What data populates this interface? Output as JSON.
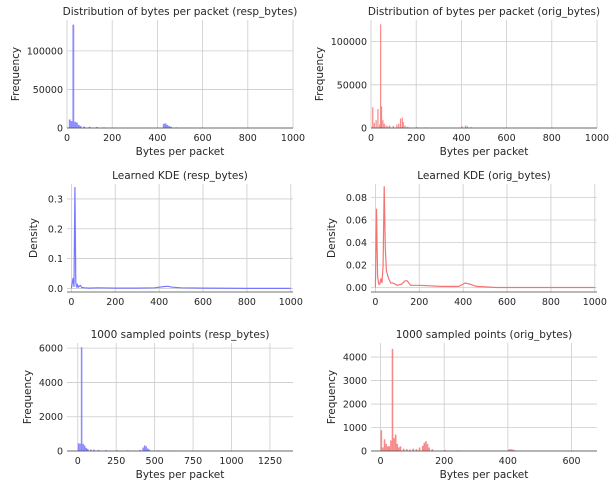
{
  "colors": {
    "resp": "#7777ff",
    "orig": "#f47474",
    "grid": "#cccccc",
    "text": "#262626"
  },
  "chart_data": [
    {
      "type": "bar",
      "title": "Distribution of bytes per packet (resp_bytes)",
      "xlabel": "Bytes per packet",
      "ylabel": "Frequency",
      "color_key": "resp",
      "xlim": [
        0,
        1000
      ],
      "ylim": [
        0,
        140000
      ],
      "xticks": [
        0,
        200,
        400,
        600,
        800,
        1000
      ],
      "yticks": [
        0,
        50000,
        100000
      ],
      "bin_width": 8,
      "x": [
        8,
        16,
        24,
        32,
        40,
        48,
        56,
        72,
        96,
        128,
        160,
        208,
        256,
        304,
        352,
        400,
        424,
        432,
        440,
        448,
        456,
        480,
        520,
        600,
        720,
        880,
        960
      ],
      "values": [
        11000,
        9000,
        134000,
        8000,
        7000,
        4000,
        2500,
        1800,
        1500,
        1200,
        800,
        400,
        300,
        300,
        300,
        400,
        5500,
        6000,
        4000,
        2500,
        1500,
        800,
        400,
        300,
        200,
        200,
        150
      ]
    },
    {
      "type": "bar",
      "title": "Distribution of bytes per packet (orig_bytes)",
      "xlabel": "Bytes per packet",
      "ylabel": "Frequency",
      "color_key": "orig",
      "xlim": [
        0,
        1000
      ],
      "ylim": [
        0,
        125000
      ],
      "xticks": [
        0,
        200,
        400,
        600,
        800,
        1000
      ],
      "yticks": [
        0,
        50000,
        100000
      ],
      "bin_width": 5,
      "x": [
        5,
        12,
        20,
        28,
        36,
        40,
        44,
        50,
        56,
        64,
        72,
        80,
        96,
        112,
        120,
        128,
        136,
        140,
        148,
        160,
        200,
        240,
        300,
        400,
        416,
        424,
        440,
        500,
        600,
        800,
        960
      ],
      "values": [
        24000,
        6000,
        9000,
        22000,
        4000,
        120000,
        25000,
        9000,
        5000,
        3000,
        2000,
        3000,
        2500,
        4000,
        5000,
        11000,
        12000,
        7000,
        3000,
        1500,
        1000,
        800,
        500,
        2000,
        3000,
        2000,
        1000,
        400,
        300,
        200,
        150
      ]
    },
    {
      "type": "line",
      "title": "Learned KDE (resp_bytes)",
      "xlabel": "",
      "ylabel": "Density",
      "color_key": "resp",
      "xlim": [
        -20,
        1010
      ],
      "ylim": [
        -0.012,
        0.35
      ],
      "xticks": [
        0,
        200,
        400,
        600,
        800,
        1000
      ],
      "yticks": [
        0.0,
        0.1,
        0.2,
        0.3
      ],
      "x": [
        0,
        8,
        12,
        16,
        20,
        24,
        28,
        32,
        40,
        48,
        60,
        80,
        120,
        200,
        300,
        380,
        420,
        440,
        460,
        500,
        600,
        800,
        1000
      ],
      "values": [
        0.0,
        0.035,
        0.005,
        0.34,
        0.02,
        0.003,
        0.012,
        0.004,
        0.01,
        0.003,
        0.002,
        0.001,
        0.002,
        0.001,
        0.001,
        0.002,
        0.006,
        0.007,
        0.004,
        0.002,
        0.001,
        0.0,
        0.0
      ]
    },
    {
      "type": "line",
      "title": "Learned KDE (orig_bytes)",
      "xlabel": "",
      "ylabel": "Density",
      "color_key": "orig",
      "xlim": [
        -20,
        1010
      ],
      "ylim": [
        -0.004,
        0.092
      ],
      "xticks": [
        0,
        200,
        400,
        600,
        800,
        1000
      ],
      "yticks": [
        0.0,
        0.02,
        0.04,
        0.06,
        0.08
      ],
      "x": [
        0,
        5,
        10,
        15,
        20,
        25,
        30,
        35,
        40,
        45,
        50,
        60,
        70,
        80,
        100,
        120,
        135,
        145,
        160,
        200,
        300,
        380,
        410,
        430,
        460,
        550,
        700,
        1000
      ],
      "values": [
        0.0,
        0.07,
        0.01,
        0.003,
        0.003,
        0.008,
        0.004,
        0.02,
        0.09,
        0.035,
        0.015,
        0.008,
        0.004,
        0.004,
        0.002,
        0.003,
        0.006,
        0.006,
        0.002,
        0.002,
        0.001,
        0.001,
        0.004,
        0.003,
        0.001,
        0.0,
        0.0,
        0.0
      ]
    },
    {
      "type": "bar",
      "title": "1000 sampled points (resp_bytes)",
      "xlabel": "Bytes per packet",
      "ylabel": "Frequency",
      "color_key": "resp",
      "xlim": [
        -70,
        1400
      ],
      "ylim": [
        0,
        6300
      ],
      "xticks": [
        0,
        250,
        500,
        750,
        1000,
        1250
      ],
      "yticks": [
        0,
        2000,
        4000,
        6000
      ],
      "bin_width": 10,
      "x": [
        0,
        10,
        20,
        30,
        40,
        50,
        60,
        80,
        100,
        130,
        180,
        250,
        320,
        400,
        420,
        430,
        440,
        450,
        460,
        520,
        600,
        800,
        1000,
        1200
      ],
      "values": [
        450,
        430,
        6050,
        420,
        320,
        180,
        120,
        90,
        80,
        60,
        50,
        40,
        40,
        60,
        200,
        330,
        270,
        150,
        80,
        40,
        30,
        20,
        15,
        10
      ]
    },
    {
      "type": "bar",
      "title": "1000 sampled points (orig_bytes)",
      "xlabel": "Bytes per packet",
      "ylabel": "Frequency",
      "color_key": "orig",
      "xlim": [
        -30,
        680
      ],
      "ylim": [
        0,
        4600
      ],
      "xticks": [
        0,
        200,
        400,
        600
      ],
      "yticks": [
        0,
        1000,
        2000,
        3000,
        4000
      ],
      "bin_width": 5,
      "x": [
        0,
        5,
        10,
        15,
        20,
        25,
        30,
        35,
        40,
        45,
        50,
        55,
        60,
        70,
        80,
        90,
        100,
        110,
        120,
        130,
        135,
        140,
        145,
        150,
        160,
        200,
        240,
        300,
        400,
        405,
        410,
        415,
        420,
        500,
        600
      ],
      "values": [
        880,
        150,
        500,
        300,
        200,
        200,
        450,
        4350,
        550,
        700,
        300,
        150,
        200,
        100,
        80,
        60,
        100,
        80,
        150,
        220,
        350,
        420,
        300,
        150,
        80,
        40,
        30,
        20,
        60,
        80,
        70,
        50,
        30,
        20,
        10
      ]
    }
  ]
}
